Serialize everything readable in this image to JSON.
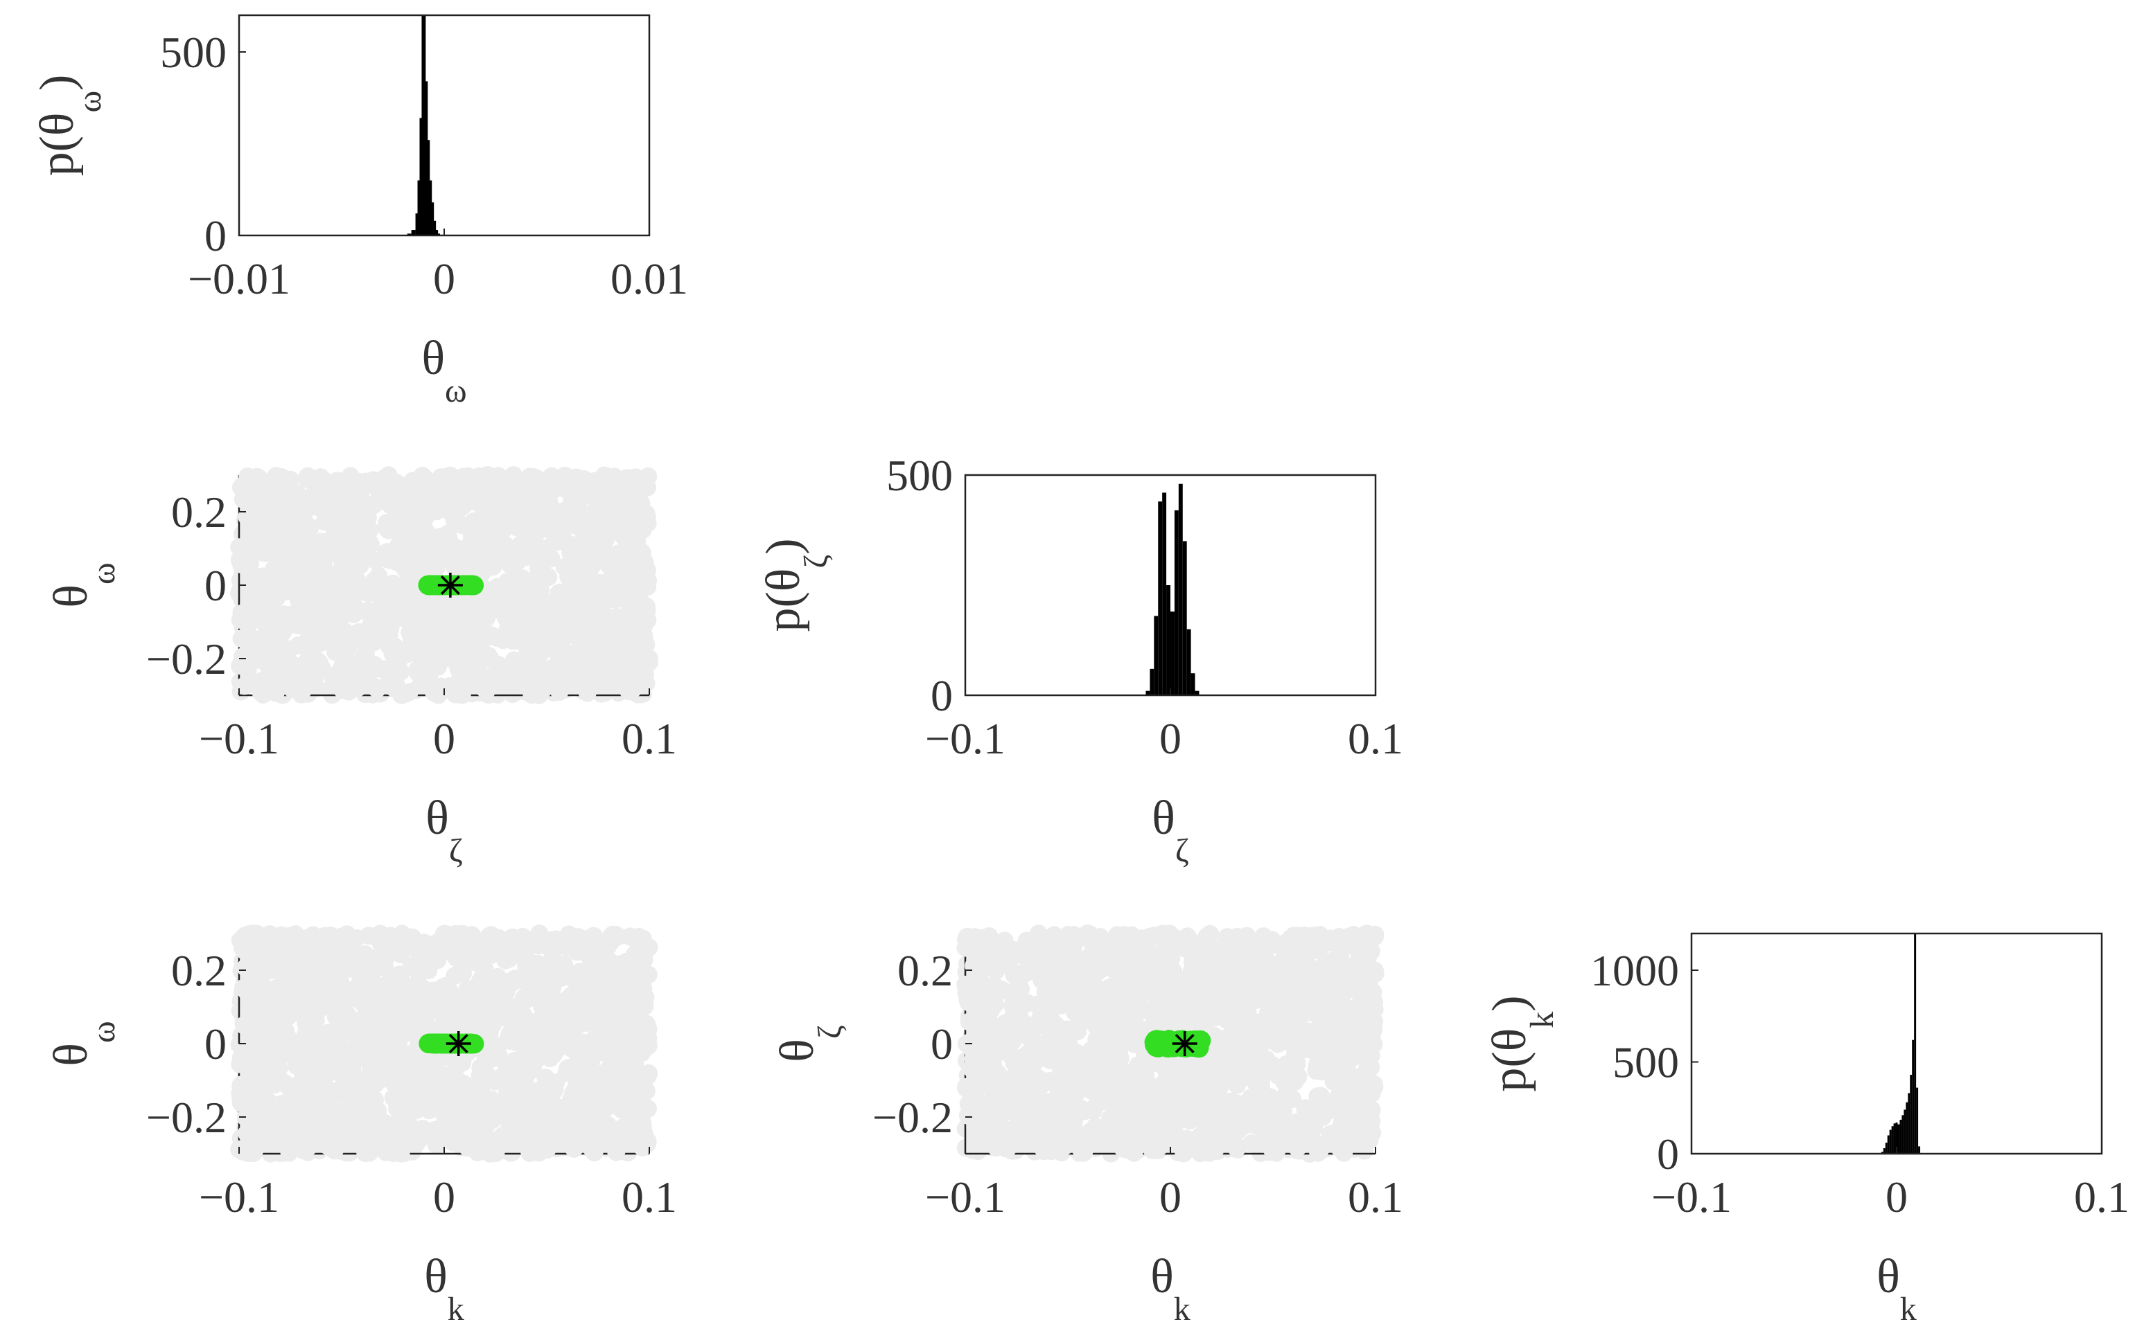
{
  "chart_data": [
    {
      "id": "hist-omega",
      "type": "bar",
      "title": "",
      "xlabel": {
        "base": "θ",
        "sub": "ω"
      },
      "ylabel": {
        "base": "p(θ",
        "sub": "ω",
        "close": ")"
      },
      "xlim": [
        -0.01,
        0.01
      ],
      "ylim": [
        0,
        600
      ],
      "xticks": [
        -0.01,
        0,
        0.01
      ],
      "xtick_labels": [
        "−0.01",
        "0",
        "0.01"
      ],
      "yticks": [
        0,
        500
      ],
      "ytick_labels": [
        "0",
        "500"
      ],
      "bins": {
        "x": [
          -0.0017,
          -0.0015,
          -0.0013,
          -0.0012,
          -0.0011,
          -0.001,
          -0.0009,
          -0.0008,
          -0.0007,
          -0.0006,
          -0.0005,
          -0.0004,
          -0.0003
        ],
        "values": [
          5,
          15,
          60,
          150,
          320,
          600,
          420,
          260,
          150,
          90,
          40,
          15,
          5
        ]
      }
    },
    {
      "id": "scatter-zeta-omega",
      "type": "scatter",
      "xlabel": {
        "base": "θ",
        "sub": "ζ"
      },
      "ylabel": {
        "base": "θ",
        "sub": "ω"
      },
      "xlim": [
        -0.1,
        0.1
      ],
      "ylim": [
        -0.3,
        0.3
      ],
      "xticks": [
        -0.1,
        0,
        0.1
      ],
      "xtick_labels": [
        "−0.1",
        "0",
        "0.1"
      ],
      "yticks": [
        -0.2,
        0,
        0.2
      ],
      "ytick_labels": [
        "−0.2",
        "0",
        "0.2"
      ],
      "prior_range": {
        "x": [
          -0.1,
          0.1
        ],
        "y": [
          -0.3,
          0.3
        ]
      },
      "posterior_range": {
        "x": [
          -0.008,
          0.015
        ],
        "y": [
          -0.001,
          0.001
        ]
      },
      "true_value": {
        "x": 0.003,
        "y": 0
      }
    },
    {
      "id": "hist-zeta",
      "type": "bar",
      "xlabel": {
        "base": "θ",
        "sub": "ζ"
      },
      "ylabel": {
        "base": "p(θ",
        "sub": "ζ",
        "close": ")"
      },
      "xlim": [
        -0.1,
        0.1
      ],
      "ylim": [
        0,
        500
      ],
      "xticks": [
        -0.1,
        0,
        0.1
      ],
      "xtick_labels": [
        "−0.1",
        "0",
        "0.1"
      ],
      "yticks": [
        0,
        500
      ],
      "ytick_labels": [
        "0",
        "500"
      ],
      "bins": {
        "x": [
          -0.011,
          -0.009,
          -0.007,
          -0.005,
          -0.003,
          -0.001,
          0.001,
          0.003,
          0.005,
          0.007,
          0.009,
          0.011,
          0.013
        ],
        "values": [
          10,
          60,
          180,
          440,
          460,
          250,
          190,
          420,
          480,
          350,
          150,
          50,
          10
        ]
      }
    },
    {
      "id": "scatter-k-omega",
      "type": "scatter",
      "xlabel": {
        "base": "θ",
        "sub": "k"
      },
      "ylabel": {
        "base": "θ",
        "sub": "ω"
      },
      "xlim": [
        -0.1,
        0.1
      ],
      "ylim": [
        -0.3,
        0.3
      ],
      "xticks": [
        -0.1,
        0,
        0.1
      ],
      "xtick_labels": [
        "−0.1",
        "0",
        "0.1"
      ],
      "yticks": [
        -0.2,
        0,
        0.2
      ],
      "ytick_labels": [
        "−0.2",
        "0",
        "0.2"
      ],
      "prior_range": {
        "x": [
          -0.1,
          0.1
        ],
        "y": [
          -0.3,
          0.3
        ]
      },
      "posterior_range": {
        "x": [
          -0.008,
          0.015
        ],
        "y": [
          -0.001,
          0.001
        ]
      },
      "true_value": {
        "x": 0.007,
        "y": 0
      }
    },
    {
      "id": "scatter-k-zeta",
      "type": "scatter",
      "xlabel": {
        "base": "θ",
        "sub": "k"
      },
      "ylabel": {
        "base": "θ",
        "sub": "ζ"
      },
      "xlim": [
        -0.1,
        0.1
      ],
      "ylim": [
        -0.3,
        0.3
      ],
      "xticks": [
        -0.1,
        0,
        0.1
      ],
      "xtick_labels": [
        "−0.1",
        "0",
        "0.1"
      ],
      "yticks": [
        -0.2,
        0,
        0.2
      ],
      "ytick_labels": [
        "−0.2",
        "0",
        "0.2"
      ],
      "prior_range": {
        "x": [
          -0.1,
          0.1
        ],
        "y": [
          -0.3,
          0.3
        ]
      },
      "posterior_range": {
        "x": [
          -0.008,
          0.015
        ],
        "y": [
          -0.012,
          0.012
        ]
      },
      "true_value": {
        "x": 0.007,
        "y": 0
      }
    },
    {
      "id": "hist-k",
      "type": "bar",
      "xlabel": {
        "base": "θ",
        "sub": "k"
      },
      "ylabel": {
        "base": "p(θ",
        "sub": "k",
        "close": ")"
      },
      "xlim": [
        -0.1,
        0.1
      ],
      "ylim": [
        0,
        1200
      ],
      "xticks": [
        -0.1,
        0,
        0.1
      ],
      "xtick_labels": [
        "−0.1",
        "0",
        "0.1"
      ],
      "yticks": [
        0,
        500,
        1000
      ],
      "ytick_labels": [
        "0",
        "500",
        "1000"
      ],
      "bins": {
        "x": [
          -0.007,
          -0.006,
          -0.005,
          -0.004,
          -0.003,
          -0.002,
          -0.001,
          0.0,
          0.001,
          0.002,
          0.003,
          0.004,
          0.005,
          0.006,
          0.007,
          0.008,
          0.009,
          0.01,
          0.011
        ],
        "values": [
          10,
          30,
          60,
          100,
          130,
          150,
          165,
          170,
          160,
          185,
          210,
          240,
          280,
          330,
          430,
          620,
          1200,
          360,
          40
        ]
      }
    }
  ],
  "colors": {
    "prior": "#ececec",
    "posterior": "#33dd22",
    "bar": "#000000",
    "axis": "#222222"
  }
}
